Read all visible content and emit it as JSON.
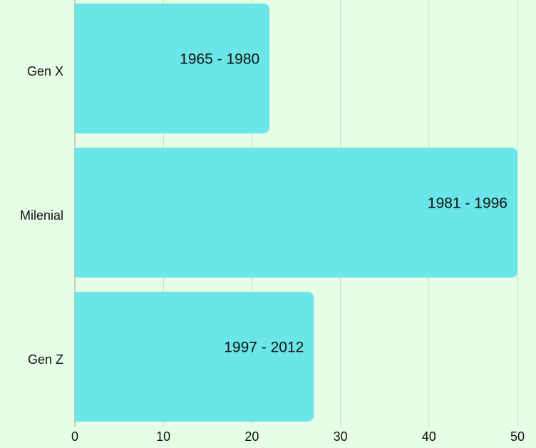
{
  "chart_data": {
    "type": "hbar",
    "categories": [
      "Gen X",
      "Milenial",
      "Gen Z"
    ],
    "values": [
      22,
      50,
      27
    ],
    "value_labels": [
      "1965 - 1980",
      "1981 - 1996",
      "1997 - 2012"
    ],
    "color": "#6ae6e9",
    "xlim": [
      0,
      50
    ],
    "xticks": [
      0,
      10,
      20,
      30,
      40,
      50
    ],
    "grid": true
  }
}
